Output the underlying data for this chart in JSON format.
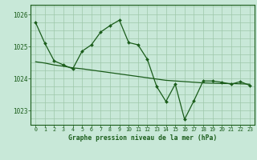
{
  "title": "Graphe pression niveau de la mer (hPa)",
  "background_color": "#c8e8d8",
  "plot_bg_color": "#c8e8d8",
  "line_color": "#1a5c1a",
  "grid_color": "#9dc8aa",
  "xlim": [
    -0.5,
    23.5
  ],
  "ylim": [
    1022.55,
    1026.3
  ],
  "yticks": [
    1023,
    1024,
    1025,
    1026
  ],
  "xticks": [
    0,
    1,
    2,
    3,
    4,
    5,
    6,
    7,
    8,
    9,
    10,
    11,
    12,
    13,
    14,
    15,
    16,
    17,
    18,
    19,
    20,
    21,
    22,
    23
  ],
  "hours": [
    0,
    1,
    2,
    3,
    4,
    5,
    6,
    7,
    8,
    9,
    10,
    11,
    12,
    13,
    14,
    15,
    16,
    17,
    18,
    19,
    20,
    21,
    22,
    23
  ],
  "pressure_main": [
    1025.75,
    1025.1,
    1024.55,
    1024.42,
    1024.3,
    1024.85,
    1025.05,
    1025.45,
    1025.65,
    1025.82,
    1025.12,
    1025.05,
    1024.6,
    1023.75,
    1023.28,
    1023.82,
    1022.72,
    1023.3,
    1023.92,
    1023.92,
    1023.88,
    1023.82,
    1023.9,
    1023.78
  ],
  "pressure_trend": [
    1024.52,
    1024.48,
    1024.42,
    1024.38,
    1024.33,
    1024.3,
    1024.26,
    1024.22,
    1024.18,
    1024.14,
    1024.1,
    1024.06,
    1024.02,
    1023.98,
    1023.94,
    1023.92,
    1023.9,
    1023.88,
    1023.86,
    1023.85,
    1023.84,
    1023.84,
    1023.83,
    1023.82
  ]
}
